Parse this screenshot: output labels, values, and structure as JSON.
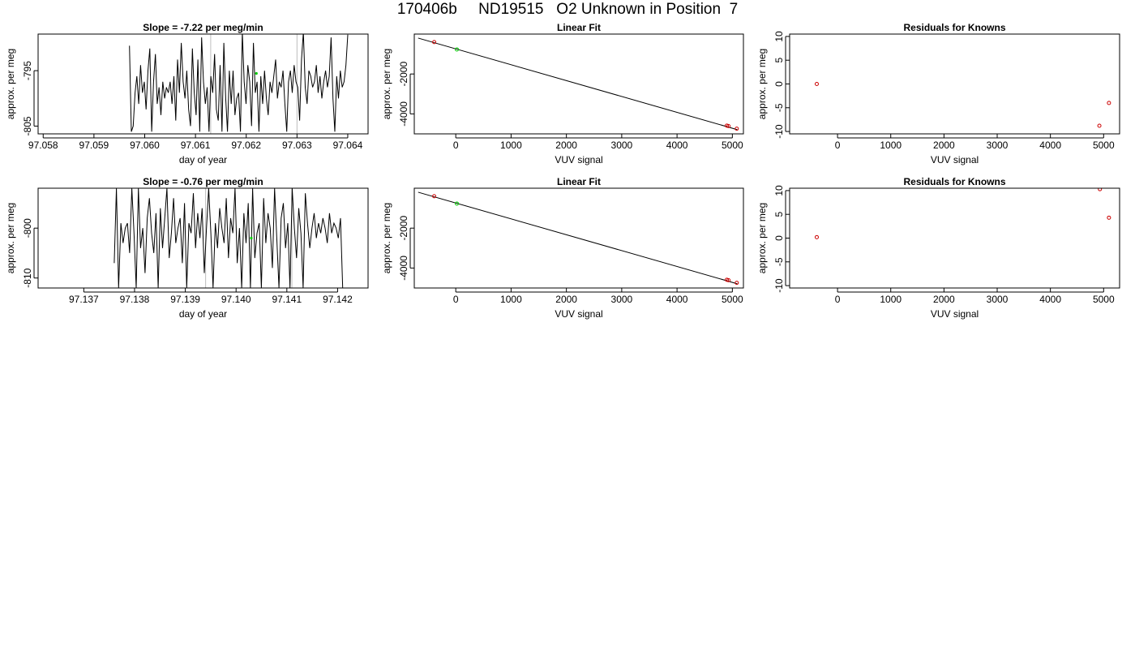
{
  "page": {
    "title": "170406b     ND19515   O2 Unknown in Position  7"
  },
  "colors": {
    "line": "#000000",
    "known_point": "#cc0000",
    "unknown_point": "#00cc00",
    "vline": "#bebebe"
  },
  "chart_data": [
    {
      "type": "line",
      "title": "Slope =  -7.22  per meg/min",
      "xlabel": "day of year",
      "ylabel": "approx. per meg",
      "xlim": [
        97.0579,
        97.0644
      ],
      "ylim": [
        -806.4,
        -788.4
      ],
      "xticks": [
        97.058,
        97.059,
        97.06,
        97.061,
        97.062,
        97.063,
        97.064
      ],
      "xtick_labels": [
        "97.058",
        "97.059",
        "97.060",
        "97.061",
        "97.062",
        "97.063",
        "97.064"
      ],
      "yticks": [
        -795,
        -805
      ],
      "ytick_labels": [
        "-795",
        "-805"
      ],
      "series_start": 97.0597,
      "series_end": 97.064,
      "vertical_lines": [
        97.0613,
        97.063
      ],
      "unknown_marker": {
        "x": 97.0622,
        "y": -795.5
      },
      "series": [
        {
          "values": [
            -790.5,
            -806,
            -805,
            -799,
            -796,
            -801,
            -794,
            -799,
            -797,
            -802,
            -795,
            -791,
            -806,
            -797,
            -792,
            -801,
            -798,
            -803,
            -797,
            -800,
            -798,
            -799,
            -797,
            -801,
            -796,
            -804,
            -793,
            -799,
            -790,
            -797,
            -800,
            -795,
            -802,
            -805,
            -791,
            -799,
            -803,
            -793,
            -806,
            -789,
            -797,
            -801,
            -798,
            -806,
            -796,
            -799,
            -792,
            -802,
            -804,
            -794,
            -806,
            -790,
            -800,
            -806,
            -795,
            -801,
            -795,
            -803,
            -800,
            -799,
            -806,
            -788,
            -797,
            -801,
            -794,
            -797,
            -805,
            -790,
            -799,
            -797,
            -806,
            -796,
            -801,
            -795,
            -800,
            -803,
            -797,
            -799,
            -796,
            -793,
            -800,
            -797,
            -798,
            -795,
            -801,
            -806,
            -797,
            -795,
            -799,
            -794,
            -797,
            -798,
            -804,
            -793,
            -788,
            -798,
            -801,
            -795,
            -796,
            -798,
            -797,
            -794,
            -799,
            -796,
            -800,
            -797,
            -795,
            -798,
            -796,
            -789,
            -800,
            -806,
            -796,
            -800,
            -795,
            -798,
            -797,
            -794,
            -788.5
          ]
        }
      ]
    },
    {
      "type": "scatter",
      "title": "Linear Fit",
      "xlabel": "VUV signal",
      "ylabel": "approx. per meg",
      "xlim": [
        -750,
        5200
      ],
      "ylim": [
        -5000,
        0
      ],
      "xticks": [
        0,
        1000,
        2000,
        3000,
        4000,
        5000
      ],
      "xtick_labels": [
        "0",
        "1000",
        "2000",
        "3000",
        "4000",
        "5000"
      ],
      "yticks": [
        -2000,
        -4000
      ],
      "ytick_labels": [
        "-2000",
        "-4000"
      ],
      "fit_line": {
        "x": [
          -680,
          5090
        ],
        "y": [
          -200,
          -4790
        ]
      },
      "known_points": [
        [
          -390,
          -400
        ],
        [
          4900,
          -4590
        ],
        [
          4930,
          -4610
        ],
        [
          5080,
          -4740
        ]
      ],
      "unknown_points": [
        [
          20,
          -770
        ]
      ]
    },
    {
      "type": "scatter",
      "title": "Residuals for Knowns",
      "xlabel": "VUV signal",
      "ylabel": "approx. per meg",
      "xlim": [
        -900,
        5300
      ],
      "ylim": [
        -10.5,
        10.5
      ],
      "xticks": [
        0,
        1000,
        2000,
        3000,
        4000,
        5000
      ],
      "xtick_labels": [
        "0",
        "1000",
        "2000",
        "3000",
        "4000",
        "5000"
      ],
      "yticks": [
        10,
        5,
        0,
        -5,
        -10
      ],
      "ytick_labels": [
        "10",
        "5",
        "0",
        "-5",
        "-10"
      ],
      "known_points": [
        [
          -390,
          0
        ],
        [
          4920,
          -8.8
        ],
        [
          5100,
          -4
        ]
      ]
    },
    {
      "type": "line",
      "title": "Slope =  -0.76  per meg/min",
      "xlabel": "day of year",
      "ylabel": "approx. per meg",
      "xlim": [
        97.1361,
        97.1426
      ],
      "ylim": [
        -812,
        -792
      ],
      "xticks": [
        97.137,
        97.138,
        97.139,
        97.14,
        97.141,
        97.142
      ],
      "xtick_labels": [
        "97.137",
        "97.138",
        "97.139",
        "97.140",
        "97.141",
        "97.142"
      ],
      "yticks": [
        -800,
        -810
      ],
      "ytick_labels": [
        "-800",
        "-810"
      ],
      "series_start": 97.1376,
      "series_end": 97.1421,
      "vertical_lines": [
        97.1394,
        97.1411
      ],
      "unknown_marker": {
        "x": 97.1403,
        "y": -802
      },
      "series": [
        {
          "values": [
            -807,
            -792,
            -812,
            -799,
            -803,
            -800,
            -799,
            -805,
            -792,
            -801,
            -812,
            -792,
            -804,
            -800,
            -809,
            -798,
            -794,
            -801,
            -805,
            -797,
            -812,
            -796,
            -804,
            -798,
            -792,
            -806,
            -801,
            -794,
            -803,
            -800,
            -798,
            -807,
            -795,
            -812,
            -799,
            -801,
            -793,
            -804,
            -797,
            -802,
            -796,
            -809,
            -800,
            -792,
            -801,
            -812,
            -799,
            -804,
            -796,
            -800,
            -803,
            -794,
            -806,
            -798,
            -801,
            -792,
            -807,
            -800,
            -812,
            -797,
            -803,
            -795,
            -812,
            -792,
            -806,
            -801,
            -799,
            -812,
            -794,
            -803,
            -797,
            -800,
            -808,
            -792,
            -802,
            -812,
            -798,
            -795,
            -804,
            -799,
            -812,
            -792,
            -800,
            -806,
            -796,
            -801,
            -812,
            -793,
            -799,
            -804,
            -800,
            -797,
            -802,
            -799,
            -801,
            -798,
            -800,
            -803,
            -797,
            -801,
            -799,
            -800,
            -802,
            -798,
            -812
          ]
        }
      ]
    },
    {
      "type": "scatter",
      "title": "Linear Fit",
      "xlabel": "VUV signal",
      "ylabel": "approx. per meg",
      "xlim": [
        -750,
        5200
      ],
      "ylim": [
        -5000,
        0
      ],
      "xticks": [
        0,
        1000,
        2000,
        3000,
        4000,
        5000
      ],
      "xtick_labels": [
        "0",
        "1000",
        "2000",
        "3000",
        "4000",
        "5000"
      ],
      "yticks": [
        -2000,
        -4000
      ],
      "ytick_labels": [
        "-2000",
        "-4000"
      ],
      "fit_line": {
        "x": [
          -680,
          5090
        ],
        "y": [
          -200,
          -4790
        ]
      },
      "known_points": [
        [
          -390,
          -400
        ],
        [
          4900,
          -4590
        ],
        [
          4930,
          -4610
        ],
        [
          5080,
          -4740
        ]
      ],
      "unknown_points": [
        [
          20,
          -770
        ]
      ]
    },
    {
      "type": "scatter",
      "title": "Residuals for Knowns",
      "xlabel": "VUV signal",
      "ylabel": "approx. per meg",
      "xlim": [
        -900,
        5300
      ],
      "ylim": [
        -10.5,
        10.5
      ],
      "xticks": [
        0,
        1000,
        2000,
        3000,
        4000,
        5000
      ],
      "xtick_labels": [
        "0",
        "1000",
        "2000",
        "3000",
        "4000",
        "5000"
      ],
      "yticks": [
        10,
        5,
        0,
        -5,
        -10
      ],
      "ytick_labels": [
        "10",
        "5",
        "0",
        "-5",
        "-10"
      ],
      "known_points": [
        [
          -390,
          0.2
        ],
        [
          4930,
          10.3
        ],
        [
          5100,
          4.3
        ]
      ]
    }
  ]
}
